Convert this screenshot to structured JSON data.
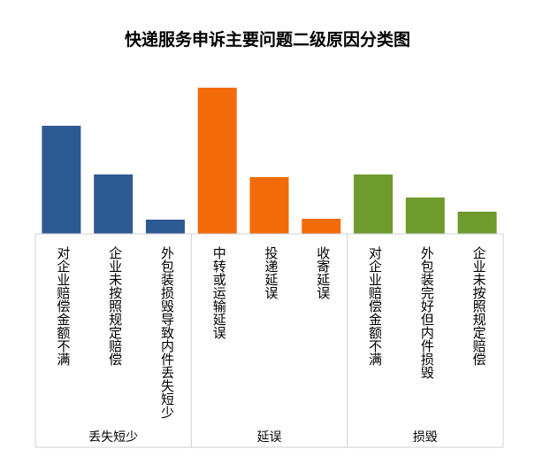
{
  "chart_data": {
    "type": "bar",
    "title": "快递服务申诉主要问题二级原因分类图",
    "groups": [
      {
        "name": "丢失短少",
        "color": "#2E5A94",
        "categories": [
          "对企业赔偿金额不满",
          "企业未按照规定赔偿",
          "外包装损毁导致内件丢失短少"
        ],
        "values": [
          122,
          67,
          16
        ]
      },
      {
        "name": "延误",
        "color": "#F26B0A",
        "categories": [
          "中转或运输延误",
          "投递延误",
          "收寄延误"
        ],
        "values": [
          165,
          64,
          17
        ]
      },
      {
        "name": "损毁",
        "color": "#6E9A2E",
        "categories": [
          "对企业赔偿金额不满",
          "外包装完好但内件损毁",
          "企业未按照规定赔偿"
        ],
        "values": [
          67,
          41,
          25
        ]
      }
    ],
    "xlabel": "",
    "ylabel": "",
    "y_axis_shown": false,
    "grid": false,
    "legend": "none"
  }
}
